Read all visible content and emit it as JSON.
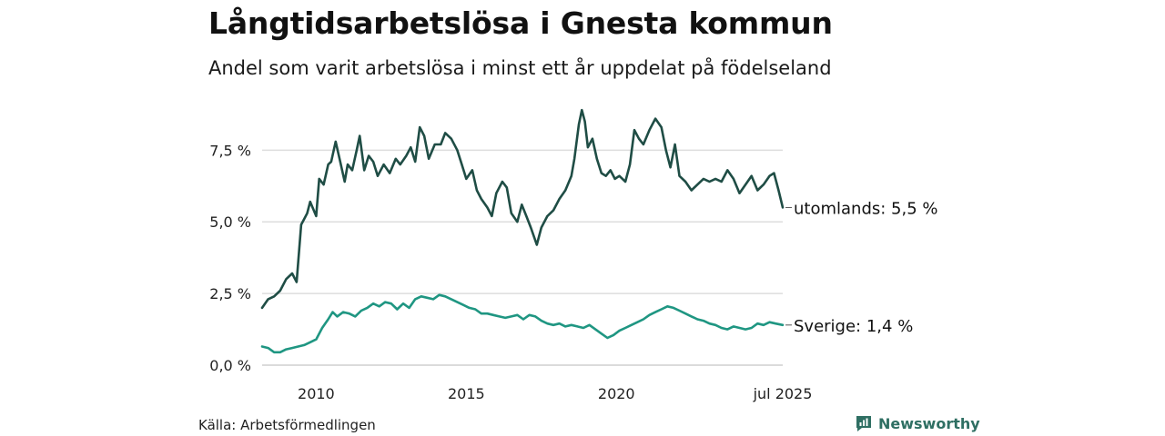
{
  "title": "Långtidsarbetslösa i Gnesta kommun",
  "subtitle": "Andel som varit arbetslösa i minst ett år uppdelat på födelseland",
  "source": "Källa: Arbetsförmedlingen",
  "brand": "Newsworthy",
  "colors": {
    "utomlands": "#1f4d45",
    "sverige": "#1f9682",
    "grid": "#dddddd",
    "brand": "#2f6f63"
  },
  "chart_data": {
    "type": "line",
    "title": "Långtidsarbetslösa i Gnesta kommun",
    "xlabel": "",
    "ylabel": "",
    "xlim": [
      2008.2,
      2025.54
    ],
    "ylim": [
      0,
      9
    ],
    "grid": true,
    "y_ticks": [
      {
        "value": 0,
        "label": "0,0 %"
      },
      {
        "value": 2.5,
        "label": "2,5 %"
      },
      {
        "value": 5,
        "label": "5,0 %"
      },
      {
        "value": 7.5,
        "label": "7,5 %"
      }
    ],
    "x_ticks": [
      {
        "value": 2010,
        "label": "2010"
      },
      {
        "value": 2015,
        "label": "2015"
      },
      {
        "value": 2020,
        "label": "2020"
      },
      {
        "value": 2025.54,
        "label": "jul 2025"
      }
    ],
    "series": [
      {
        "name": "utomlands",
        "end_label": "utomlands: 5,5 %",
        "color": "#1f4d45",
        "points": [
          [
            2008.2,
            2.0
          ],
          [
            2008.4,
            2.3
          ],
          [
            2008.6,
            2.4
          ],
          [
            2008.8,
            2.6
          ],
          [
            2009.0,
            3.0
          ],
          [
            2009.2,
            3.2
          ],
          [
            2009.35,
            2.9
          ],
          [
            2009.5,
            4.9
          ],
          [
            2009.6,
            5.1
          ],
          [
            2009.7,
            5.3
          ],
          [
            2009.8,
            5.7
          ],
          [
            2010.0,
            5.2
          ],
          [
            2010.1,
            6.5
          ],
          [
            2010.25,
            6.3
          ],
          [
            2010.4,
            7.0
          ],
          [
            2010.5,
            7.1
          ],
          [
            2010.65,
            7.8
          ],
          [
            2010.8,
            7.1
          ],
          [
            2010.95,
            6.4
          ],
          [
            2011.05,
            7.0
          ],
          [
            2011.2,
            6.8
          ],
          [
            2011.35,
            7.5
          ],
          [
            2011.45,
            8.0
          ],
          [
            2011.6,
            6.8
          ],
          [
            2011.75,
            7.3
          ],
          [
            2011.9,
            7.1
          ],
          [
            2012.05,
            6.6
          ],
          [
            2012.25,
            7.0
          ],
          [
            2012.45,
            6.7
          ],
          [
            2012.65,
            7.2
          ],
          [
            2012.8,
            7.0
          ],
          [
            2013.0,
            7.3
          ],
          [
            2013.15,
            7.6
          ],
          [
            2013.3,
            7.1
          ],
          [
            2013.45,
            8.3
          ],
          [
            2013.6,
            8.0
          ],
          [
            2013.75,
            7.2
          ],
          [
            2013.95,
            7.7
          ],
          [
            2014.15,
            7.7
          ],
          [
            2014.3,
            8.1
          ],
          [
            2014.5,
            7.9
          ],
          [
            2014.7,
            7.5
          ],
          [
            2014.85,
            7.0
          ],
          [
            2015.0,
            6.5
          ],
          [
            2015.2,
            6.8
          ],
          [
            2015.35,
            6.1
          ],
          [
            2015.5,
            5.8
          ],
          [
            2015.7,
            5.5
          ],
          [
            2015.85,
            5.2
          ],
          [
            2016.0,
            6.0
          ],
          [
            2016.2,
            6.4
          ],
          [
            2016.35,
            6.2
          ],
          [
            2016.5,
            5.3
          ],
          [
            2016.7,
            5.0
          ],
          [
            2016.85,
            5.6
          ],
          [
            2017.0,
            5.2
          ],
          [
            2017.15,
            4.8
          ],
          [
            2017.35,
            4.2
          ],
          [
            2017.5,
            4.8
          ],
          [
            2017.7,
            5.2
          ],
          [
            2017.9,
            5.4
          ],
          [
            2018.1,
            5.8
          ],
          [
            2018.3,
            6.1
          ],
          [
            2018.5,
            6.6
          ],
          [
            2018.6,
            7.2
          ],
          [
            2018.75,
            8.4
          ],
          [
            2018.85,
            8.9
          ],
          [
            2018.95,
            8.5
          ],
          [
            2019.05,
            7.6
          ],
          [
            2019.2,
            7.9
          ],
          [
            2019.35,
            7.2
          ],
          [
            2019.5,
            6.7
          ],
          [
            2019.65,
            6.6
          ],
          [
            2019.8,
            6.8
          ],
          [
            2019.95,
            6.5
          ],
          [
            2020.1,
            6.6
          ],
          [
            2020.3,
            6.4
          ],
          [
            2020.45,
            7.0
          ],
          [
            2020.6,
            8.2
          ],
          [
            2020.75,
            7.9
          ],
          [
            2020.9,
            7.7
          ],
          [
            2021.1,
            8.2
          ],
          [
            2021.3,
            8.6
          ],
          [
            2021.5,
            8.3
          ],
          [
            2021.65,
            7.5
          ],
          [
            2021.8,
            6.9
          ],
          [
            2021.95,
            7.7
          ],
          [
            2022.1,
            6.6
          ],
          [
            2022.3,
            6.4
          ],
          [
            2022.5,
            6.1
          ],
          [
            2022.7,
            6.3
          ],
          [
            2022.9,
            6.5
          ],
          [
            2023.1,
            6.4
          ],
          [
            2023.3,
            6.5
          ],
          [
            2023.5,
            6.4
          ],
          [
            2023.7,
            6.8
          ],
          [
            2023.9,
            6.5
          ],
          [
            2024.1,
            6.0
          ],
          [
            2024.3,
            6.3
          ],
          [
            2024.5,
            6.6
          ],
          [
            2024.7,
            6.1
          ],
          [
            2024.9,
            6.3
          ],
          [
            2025.1,
            6.6
          ],
          [
            2025.25,
            6.7
          ],
          [
            2025.4,
            6.1
          ],
          [
            2025.54,
            5.5
          ]
        ]
      },
      {
        "name": "Sverige",
        "end_label": "Sverige: 1,4 %",
        "color": "#1f9682",
        "points": [
          [
            2008.2,
            0.65
          ],
          [
            2008.4,
            0.6
          ],
          [
            2008.6,
            0.45
          ],
          [
            2008.8,
            0.45
          ],
          [
            2009.0,
            0.55
          ],
          [
            2009.2,
            0.6
          ],
          [
            2009.4,
            0.65
          ],
          [
            2009.6,
            0.7
          ],
          [
            2009.8,
            0.8
          ],
          [
            2010.0,
            0.9
          ],
          [
            2010.2,
            1.3
          ],
          [
            2010.4,
            1.6
          ],
          [
            2010.55,
            1.85
          ],
          [
            2010.7,
            1.7
          ],
          [
            2010.9,
            1.85
          ],
          [
            2011.1,
            1.8
          ],
          [
            2011.3,
            1.7
          ],
          [
            2011.5,
            1.9
          ],
          [
            2011.7,
            2.0
          ],
          [
            2011.9,
            2.15
          ],
          [
            2012.1,
            2.05
          ],
          [
            2012.3,
            2.2
          ],
          [
            2012.5,
            2.15
          ],
          [
            2012.7,
            1.95
          ],
          [
            2012.9,
            2.15
          ],
          [
            2013.1,
            2.0
          ],
          [
            2013.3,
            2.3
          ],
          [
            2013.5,
            2.4
          ],
          [
            2013.7,
            2.35
          ],
          [
            2013.9,
            2.3
          ],
          [
            2014.1,
            2.45
          ],
          [
            2014.3,
            2.4
          ],
          [
            2014.5,
            2.3
          ],
          [
            2014.7,
            2.2
          ],
          [
            2014.9,
            2.1
          ],
          [
            2015.1,
            2.0
          ],
          [
            2015.3,
            1.95
          ],
          [
            2015.5,
            1.8
          ],
          [
            2015.7,
            1.8
          ],
          [
            2015.9,
            1.75
          ],
          [
            2016.1,
            1.7
          ],
          [
            2016.3,
            1.65
          ],
          [
            2016.5,
            1.7
          ],
          [
            2016.7,
            1.75
          ],
          [
            2016.9,
            1.6
          ],
          [
            2017.1,
            1.75
          ],
          [
            2017.3,
            1.7
          ],
          [
            2017.5,
            1.55
          ],
          [
            2017.7,
            1.45
          ],
          [
            2017.9,
            1.4
          ],
          [
            2018.1,
            1.45
          ],
          [
            2018.3,
            1.35
          ],
          [
            2018.5,
            1.4
          ],
          [
            2018.7,
            1.35
          ],
          [
            2018.9,
            1.3
          ],
          [
            2019.1,
            1.4
          ],
          [
            2019.3,
            1.25
          ],
          [
            2019.5,
            1.1
          ],
          [
            2019.7,
            0.95
          ],
          [
            2019.9,
            1.05
          ],
          [
            2020.1,
            1.2
          ],
          [
            2020.3,
            1.3
          ],
          [
            2020.5,
            1.4
          ],
          [
            2020.7,
            1.5
          ],
          [
            2020.9,
            1.6
          ],
          [
            2021.1,
            1.75
          ],
          [
            2021.3,
            1.85
          ],
          [
            2021.5,
            1.95
          ],
          [
            2021.7,
            2.05
          ],
          [
            2021.9,
            2.0
          ],
          [
            2022.1,
            1.9
          ],
          [
            2022.3,
            1.8
          ],
          [
            2022.5,
            1.7
          ],
          [
            2022.7,
            1.6
          ],
          [
            2022.9,
            1.55
          ],
          [
            2023.1,
            1.45
          ],
          [
            2023.3,
            1.4
          ],
          [
            2023.5,
            1.3
          ],
          [
            2023.7,
            1.25
          ],
          [
            2023.9,
            1.35
          ],
          [
            2024.1,
            1.3
          ],
          [
            2024.3,
            1.25
          ],
          [
            2024.5,
            1.3
          ],
          [
            2024.7,
            1.45
          ],
          [
            2024.9,
            1.4
          ],
          [
            2025.1,
            1.5
          ],
          [
            2025.3,
            1.45
          ],
          [
            2025.54,
            1.4
          ]
        ]
      }
    ]
  }
}
